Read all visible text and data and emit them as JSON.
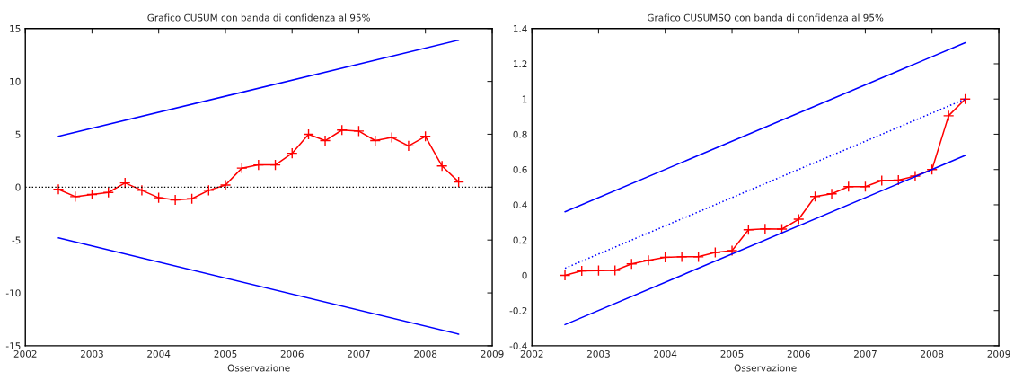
{
  "chart_data": [
    {
      "type": "line",
      "title": "Grafico CUSUM con banda di confidenza al 95%",
      "xlabel": "Osservazione",
      "xlim": [
        "2002",
        "2009"
      ],
      "xticks": [
        "2002",
        "2003",
        "2004",
        "2005",
        "2006",
        "2007",
        "2008",
        "2009"
      ],
      "ylim": [
        -15,
        15
      ],
      "yticks": [
        -15,
        -10,
        -5,
        0,
        5,
        10,
        15
      ],
      "grid": false,
      "legend": false,
      "x": [
        "2002-07",
        "2002-10",
        "2003-01",
        "2003-04",
        "2003-07",
        "2003-10",
        "2004-01",
        "2004-04",
        "2004-07",
        "2004-10",
        "2005-01",
        "2005-04",
        "2005-07",
        "2005-10",
        "2006-01",
        "2006-04",
        "2006-07",
        "2006-10",
        "2007-01",
        "2007-04",
        "2007-07",
        "2007-10",
        "2008-01",
        "2008-04",
        "2008-07"
      ],
      "series": [
        {
          "color": "#ff0000",
          "marker": "cross",
          "line_style": "solid",
          "values": [
            -0.2,
            -0.9,
            -0.7,
            -0.5,
            0.4,
            -0.3,
            -1.0,
            -1.2,
            -1.1,
            -0.3,
            0.2,
            1.8,
            2.1,
            2.1,
            3.2,
            5.0,
            4.4,
            5.4,
            5.3,
            4.4,
            4.7,
            3.9,
            4.8,
            2.0,
            0.5
          ]
        },
        {
          "color": "#0000ff",
          "marker": "none",
          "line_style": "solid",
          "x": [
            "2002-07",
            "2008-07"
          ],
          "values": [
            4.8,
            13.9
          ]
        },
        {
          "color": "#0000ff",
          "marker": "none",
          "line_style": "solid",
          "x": [
            "2002-07",
            "2008-07"
          ],
          "values": [
            -4.8,
            -13.9
          ]
        }
      ],
      "ref_lines": [
        {
          "axis": "y",
          "value": 0,
          "color": "#000000",
          "line_style": "dotted"
        }
      ]
    },
    {
      "type": "line",
      "title": "Grafico CUSUMSQ con banda di confidenza al 95%",
      "xlabel": "Osservazione",
      "xlim": [
        "2002",
        "2009"
      ],
      "xticks": [
        "2002",
        "2003",
        "2004",
        "2005",
        "2006",
        "2007",
        "2008",
        "2009"
      ],
      "ylim": [
        -0.4,
        1.4
      ],
      "yticks": [
        -0.4,
        -0.2,
        0,
        0.2,
        0.4,
        0.6,
        0.8,
        1,
        1.2,
        1.4
      ],
      "grid": false,
      "legend": false,
      "x": [
        "2002-07",
        "2002-10",
        "2003-01",
        "2003-04",
        "2003-07",
        "2003-10",
        "2004-01",
        "2004-04",
        "2004-07",
        "2004-10",
        "2005-01",
        "2005-04",
        "2005-07",
        "2005-10",
        "2006-01",
        "2006-04",
        "2006-07",
        "2006-10",
        "2007-01",
        "2007-04",
        "2007-07",
        "2007-10",
        "2008-01",
        "2008-04",
        "2008-07"
      ],
      "series": [
        {
          "color": "#ff0000",
          "marker": "cross",
          "line_style": "solid",
          "values": [
            0,
            0.025,
            0.027,
            0.028,
            0.065,
            0.085,
            0.102,
            0.105,
            0.105,
            0.13,
            0.14,
            0.258,
            0.263,
            0.262,
            0.318,
            0.447,
            0.462,
            0.503,
            0.503,
            0.537,
            0.54,
            0.563,
            0.6,
            0.905,
            1.0
          ]
        },
        {
          "color": "#0000ff",
          "marker": "none",
          "line_style": "solid",
          "x": [
            "2002-07",
            "2008-07"
          ],
          "values": [
            0.36,
            1.32
          ]
        },
        {
          "color": "#0000ff",
          "marker": "none",
          "line_style": "dotted",
          "x": [
            "2002-07",
            "2008-07"
          ],
          "values": [
            0.04,
            1.0
          ]
        },
        {
          "color": "#0000ff",
          "marker": "none",
          "line_style": "solid",
          "x": [
            "2002-07",
            "2008-07"
          ],
          "values": [
            -0.28,
            0.68
          ]
        }
      ]
    }
  ]
}
